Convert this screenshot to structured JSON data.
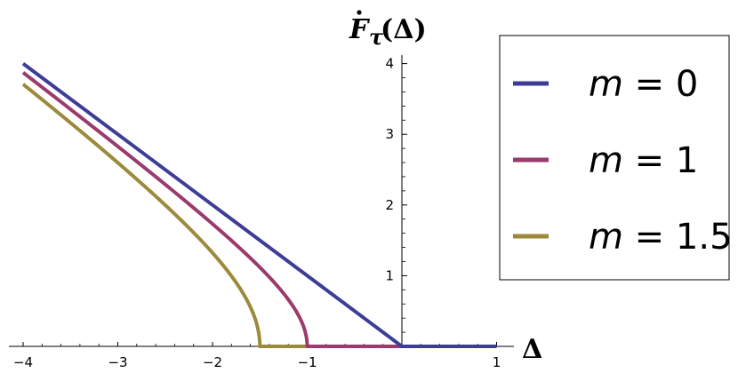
{
  "chart_data": {
    "type": "line",
    "title": "",
    "xlabel": "Δ",
    "ylabel": "F_τ(Δ)",
    "ylabel_parts": {
      "symbol": "F",
      "subscript": "τ",
      "argument": "(Δ)"
    },
    "xlim": [
      -4.1,
      1.1
    ],
    "ylim": [
      0,
      4.1
    ],
    "x_ticks": [
      -4,
      -3,
      -2,
      -1,
      1
    ],
    "x_tick_labels": [
      "−4",
      "−3",
      "−2",
      "−1",
      "1"
    ],
    "y_ticks": [
      1,
      2,
      3,
      4
    ],
    "y_tick_labels": [
      "1",
      "2",
      "3",
      "4"
    ],
    "grid": false,
    "legend_placement": "right",
    "series": [
      {
        "name": "m = 0",
        "legend_var": "m",
        "legend_value": "0",
        "m": 0,
        "color": "#3d3d99",
        "x": [
          -4,
          -3,
          -2,
          -1,
          0,
          1
        ],
        "y": [
          4,
          3,
          2,
          1,
          0,
          0
        ]
      },
      {
        "name": "m = 1",
        "legend_var": "m",
        "legend_value": "1",
        "m": 1,
        "color": "#9b3b6d",
        "x": [
          -4,
          -3.5,
          -3,
          -2.5,
          -2,
          -1.75,
          -1.5,
          -1.25,
          -1.1,
          -1.02,
          -1,
          0,
          1
        ],
        "y": [
          3.87,
          3.35,
          2.83,
          2.29,
          1.73,
          1.43,
          1.12,
          0.75,
          0.46,
          0.2,
          0,
          0,
          0
        ]
      },
      {
        "name": "m = 1.5",
        "legend_var": "m",
        "legend_value": "1.5",
        "m": 1.5,
        "color": "#9c8a3c",
        "x": [
          -4,
          -3.5,
          -3,
          -2.5,
          -2,
          -1.8,
          -1.65,
          -1.55,
          -1.51,
          -1.5,
          0,
          1
        ],
        "y": [
          3.71,
          3.16,
          2.6,
          2.0,
          1.32,
          1.0,
          0.69,
          0.39,
          0.17,
          0,
          0,
          0
        ]
      }
    ]
  }
}
